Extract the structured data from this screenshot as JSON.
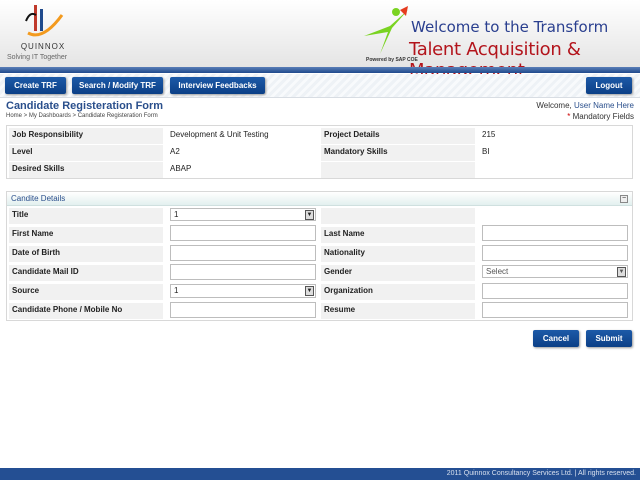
{
  "header": {
    "logo_name": "QUINNOX",
    "logo_tagline": "Solving IT Together",
    "welcome_line1": "Welcome to the Transform",
    "welcome_line2": "Talent Acquisition & Management",
    "powered_by": "Powered by SAP COE"
  },
  "nav": {
    "items": [
      {
        "label": "Create TRF"
      },
      {
        "label": "Search / Modify TRF"
      },
      {
        "label": "Interview Feedbacks"
      }
    ],
    "logout": "Logout"
  },
  "page": {
    "title": "Candidate Registeration Form",
    "breadcrumb": "Home > My Dashboards > Candidate Registeration Form",
    "welcome_prefix": "Welcome, ",
    "user_name": "User Name Here",
    "mandatory_mark": "*",
    "mandatory_text": " Mandatory Fields"
  },
  "info": {
    "rows": [
      {
        "label1": "Job Responsibility",
        "value1": "Development & Unit Testing",
        "label2": "Project Details",
        "value2": "215"
      },
      {
        "label1": "Level",
        "value1": "A2",
        "label2": "Mandatory Skills",
        "value2": "BI"
      },
      {
        "label1": "Desired Skills",
        "value1": "ABAP",
        "label2": "",
        "value2": ""
      }
    ]
  },
  "candidate": {
    "section_title": "Candite Details",
    "collapse_icon": "minus-icon",
    "fields": {
      "title": {
        "label": "Title",
        "value": "1"
      },
      "first_name": {
        "label": "First Name",
        "value": ""
      },
      "last_name": {
        "label": "Last Name",
        "value": ""
      },
      "dob": {
        "label": "Date of Birth",
        "value": ""
      },
      "nationality": {
        "label": "Nationality",
        "value": ""
      },
      "mail": {
        "label": "Candidate Mail ID",
        "value": ""
      },
      "gender": {
        "label": "Gender",
        "value": "Select"
      },
      "source": {
        "label": "Source",
        "value": "1"
      },
      "organization": {
        "label": "Organization",
        "value": ""
      },
      "phone": {
        "label": "Candidate Phone / Mobile No",
        "value": ""
      },
      "resume": {
        "label": "Resume",
        "value": ""
      }
    }
  },
  "actions": {
    "cancel": "Cancel",
    "submit": "Submit"
  },
  "footer": {
    "text": "2011 Quinnox Consultancy Services Ltd. | All rights reserved."
  }
}
